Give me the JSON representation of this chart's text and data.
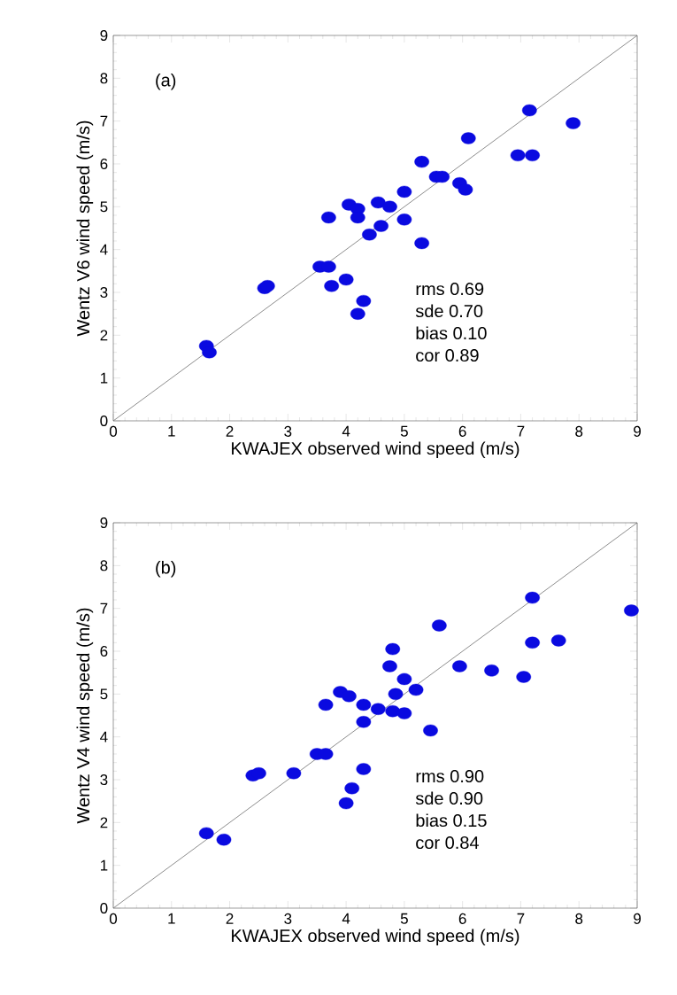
{
  "chart_data": [
    {
      "type": "scatter",
      "xlabel": "KWAJEX observed wind speed (m/s)",
      "ylabel": "Wentz V6 wind speed (m/s)",
      "xlim": [
        0,
        9
      ],
      "ylim": [
        0,
        9
      ],
      "xticks": [
        0,
        1,
        2,
        3,
        4,
        5,
        6,
        7,
        8,
        9
      ],
      "yticks": [
        0,
        1,
        2,
        3,
        4,
        5,
        6,
        7,
        8,
        9
      ],
      "marker": "circle",
      "annotations": [
        "(a)",
        "rms 0.69",
        "sde 0.70",
        "bias 0.10",
        "cor 0.89"
      ],
      "series": [
        {
          "color": "#0a0ae0",
          "x": [
            1.6,
            1.65,
            2.6,
            2.65,
            3.55,
            3.7,
            3.7,
            3.75,
            4.0,
            4.2,
            4.3,
            4.05,
            4.2,
            4.2,
            4.4,
            4.6,
            4.55,
            4.75,
            5.0,
            5.0,
            5.3,
            5.3,
            5.55,
            5.65,
            5.95,
            6.05,
            6.1,
            6.95,
            7.2,
            7.15,
            7.9
          ],
          "values": [
            1.75,
            1.6,
            3.1,
            3.15,
            3.6,
            3.6,
            4.75,
            3.15,
            3.3,
            2.5,
            2.8,
            5.05,
            4.95,
            4.75,
            4.35,
            4.55,
            5.1,
            5.0,
            5.35,
            4.7,
            4.15,
            6.05,
            5.7,
            5.7,
            5.55,
            5.4,
            6.6,
            6.2,
            6.2,
            7.25,
            6.95
          ]
        },
        {
          "type": "line",
          "marker": "none",
          "color": "#707070",
          "x": [
            0,
            9
          ],
          "values": [
            0,
            9
          ]
        }
      ]
    },
    {
      "type": "scatter",
      "xlabel": "KWAJEX observed wind speed (m/s)",
      "ylabel": "Wentz V4 wind speed (m/s)",
      "xlim": [
        0,
        9
      ],
      "ylim": [
        0,
        9
      ],
      "xticks": [
        0,
        1,
        2,
        3,
        4,
        5,
        6,
        7,
        8,
        9
      ],
      "yticks": [
        0,
        1,
        2,
        3,
        4,
        5,
        6,
        7,
        8,
        9
      ],
      "marker": "circle",
      "annotations": [
        "(b)",
        "rms 0.90",
        "sde 0.90",
        "bias 0.15",
        "cor 0.84"
      ],
      "series": [
        {
          "color": "#0a0ae0",
          "x": [
            1.6,
            1.9,
            2.4,
            2.5,
            3.1,
            3.5,
            3.65,
            3.65,
            3.9,
            4.05,
            4.0,
            4.1,
            4.3,
            4.3,
            4.3,
            4.55,
            4.75,
            4.8,
            4.85,
            4.8,
            5.0,
            5.0,
            5.2,
            5.45,
            5.6,
            5.95,
            6.5,
            7.05,
            7.2,
            7.2,
            7.65,
            8.9
          ],
          "values": [
            1.75,
            1.6,
            3.1,
            3.15,
            3.15,
            3.6,
            3.6,
            4.75,
            5.05,
            4.95,
            2.45,
            2.8,
            3.25,
            4.35,
            4.75,
            4.65,
            5.65,
            6.05,
            5.0,
            4.6,
            4.55,
            5.35,
            5.1,
            4.15,
            6.6,
            5.65,
            5.55,
            5.4,
            6.2,
            7.25,
            6.25,
            6.95
          ]
        },
        {
          "type": "line",
          "marker": "none",
          "color": "#707070",
          "x": [
            0,
            9
          ],
          "values": [
            0,
            9
          ]
        }
      ]
    }
  ]
}
